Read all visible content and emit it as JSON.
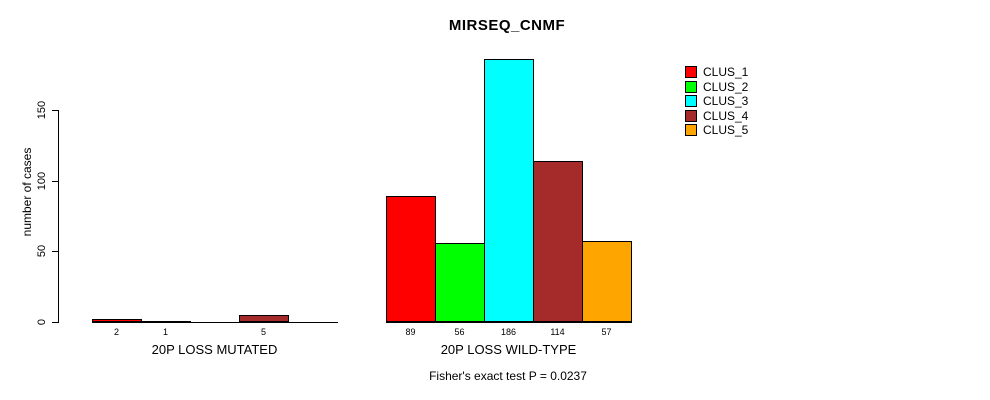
{
  "chart_data": {
    "type": "bar",
    "title": "MIRSEQ_CNMF",
    "ylabel": "number of cases",
    "xlabel": "",
    "ylim": [
      0,
      150
    ],
    "yticks": [
      0,
      50,
      100,
      150
    ],
    "grid": false,
    "legend_position": "top-right",
    "categories": [
      "20P LOSS MUTATED",
      "20P LOSS WILD-TYPE"
    ],
    "series": [
      {
        "name": "CLUS_1",
        "color": "#FF0000",
        "values": [
          2,
          89
        ]
      },
      {
        "name": "CLUS_2",
        "color": "#00FF00",
        "values": [
          1,
          56
        ]
      },
      {
        "name": "CLUS_3",
        "color": "#00FFFF",
        "values": [
          0,
          186
        ]
      },
      {
        "name": "CLUS_4",
        "color": "#A52A2A",
        "values": [
          5,
          114
        ]
      },
      {
        "name": "CLUS_5",
        "color": "#FFA500",
        "values": [
          0,
          57
        ]
      }
    ],
    "bar_value_labels": [
      [
        "2",
        "1",
        "",
        "5",
        ""
      ],
      [
        "89",
        "56",
        "186",
        "114",
        "57"
      ]
    ],
    "footnote": "Fisher's exact test P = 0.0237",
    "colors": {
      "axis": "#000000",
      "text": "#000000",
      "background": "#FFFFFF"
    }
  }
}
